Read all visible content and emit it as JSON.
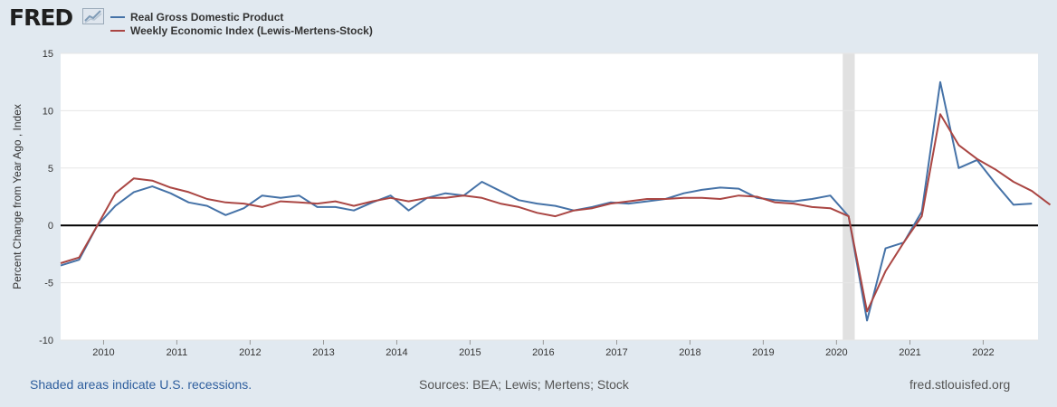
{
  "header": {
    "logo_text": "FRED",
    "logo_icon": "chart-trend-icon"
  },
  "footer": {
    "note": "Shaded areas indicate U.S. recessions.",
    "sources": "Sources: BEA; Lewis; Mertens; Stock",
    "site": "fred.stlouisfed.org"
  },
  "colors": {
    "background": "#e1e9f0",
    "plot_background": "#ffffff",
    "recession_shading": "#e1e1e1",
    "gdp_line": "#4572a7",
    "wei_line": "#aa4643",
    "zero_line": "#000000",
    "grid": "#e6e6e6"
  },
  "chart_data": {
    "type": "line",
    "title": "",
    "ylabel": "Percent Change from Year Ago , Index",
    "xlabel": "",
    "ylim": [
      -10,
      15
    ],
    "xlim": [
      "2009-06-01",
      "2022-10-01"
    ],
    "y_ticks": [
      -10,
      -5,
      0,
      5,
      10,
      15
    ],
    "x_ticks": [
      "2010",
      "2011",
      "2012",
      "2013",
      "2014",
      "2015",
      "2016",
      "2017",
      "2018",
      "2019",
      "2020",
      "2021",
      "2022"
    ],
    "grid": true,
    "legend": "top-left",
    "recessions": [
      [
        "2020-02-01",
        "2020-04-01"
      ]
    ],
    "series": [
      {
        "name": "Real Gross Domestic Product",
        "color": "#4572a7",
        "x": [
          "2009-06-01",
          "2009-09-01",
          "2009-12-01",
          "2010-03-01",
          "2010-06-01",
          "2010-09-01",
          "2010-12-01",
          "2011-03-01",
          "2011-06-01",
          "2011-09-01",
          "2011-12-01",
          "2012-03-01",
          "2012-06-01",
          "2012-09-01",
          "2012-12-01",
          "2013-03-01",
          "2013-06-01",
          "2013-09-01",
          "2013-12-01",
          "2014-03-01",
          "2014-06-01",
          "2014-09-01",
          "2014-12-01",
          "2015-03-01",
          "2015-06-01",
          "2015-09-01",
          "2015-12-01",
          "2016-03-01",
          "2016-06-01",
          "2016-09-01",
          "2016-12-01",
          "2017-03-01",
          "2017-06-01",
          "2017-09-01",
          "2017-12-01",
          "2018-03-01",
          "2018-06-01",
          "2018-09-01",
          "2018-12-01",
          "2019-03-01",
          "2019-06-01",
          "2019-09-01",
          "2019-12-01",
          "2020-03-01",
          "2020-06-01",
          "2020-09-01",
          "2020-12-01",
          "2021-03-01",
          "2021-06-01",
          "2021-09-01",
          "2021-12-01",
          "2022-03-01",
          "2022-06-01",
          "2022-09-01"
        ],
        "y": [
          -3.5,
          -3.0,
          0.0,
          1.7,
          2.9,
          3.4,
          2.8,
          2.0,
          1.7,
          0.9,
          1.5,
          2.6,
          2.4,
          2.6,
          1.6,
          1.6,
          1.3,
          2.0,
          2.6,
          1.3,
          2.4,
          2.8,
          2.6,
          3.8,
          3.0,
          2.2,
          1.9,
          1.7,
          1.3,
          1.6,
          2.0,
          1.9,
          2.1,
          2.3,
          2.8,
          3.1,
          3.3,
          3.2,
          2.4,
          2.2,
          2.1,
          2.3,
          2.6,
          0.8,
          -8.3,
          -2.0,
          -1.5,
          1.2,
          12.5,
          5.0,
          5.7,
          3.7,
          1.8,
          1.9
        ]
      },
      {
        "name": "Weekly Economic Index (Lewis-Mertens-Stock)",
        "color": "#aa4643",
        "x": [
          "2009-06-01",
          "2009-09-01",
          "2009-12-01",
          "2010-03-01",
          "2010-06-01",
          "2010-09-01",
          "2010-12-01",
          "2011-03-01",
          "2011-06-01",
          "2011-09-01",
          "2011-12-01",
          "2012-03-01",
          "2012-06-01",
          "2012-09-01",
          "2012-12-01",
          "2013-03-01",
          "2013-06-01",
          "2013-09-01",
          "2013-12-01",
          "2014-03-01",
          "2014-06-01",
          "2014-09-01",
          "2014-12-01",
          "2015-03-01",
          "2015-06-01",
          "2015-09-01",
          "2015-12-01",
          "2016-03-01",
          "2016-06-01",
          "2016-09-01",
          "2016-12-01",
          "2017-03-01",
          "2017-06-01",
          "2017-09-01",
          "2017-12-01",
          "2018-03-01",
          "2018-06-01",
          "2018-09-01",
          "2018-12-01",
          "2019-03-01",
          "2019-06-01",
          "2019-09-01",
          "2019-12-01",
          "2020-03-01",
          "2020-06-01",
          "2020-09-01",
          "2020-12-01",
          "2021-03-01",
          "2021-06-01",
          "2021-09-01",
          "2021-12-01",
          "2022-03-01",
          "2022-06-01",
          "2022-09-01",
          "2022-12-01"
        ],
        "y": [
          -3.3,
          -2.8,
          0.0,
          2.8,
          4.1,
          3.9,
          3.3,
          2.9,
          2.3,
          2.0,
          1.9,
          1.6,
          2.1,
          2.0,
          1.9,
          2.1,
          1.7,
          2.1,
          2.4,
          2.1,
          2.4,
          2.4,
          2.6,
          2.4,
          1.9,
          1.6,
          1.1,
          0.8,
          1.3,
          1.5,
          1.9,
          2.1,
          2.3,
          2.3,
          2.4,
          2.4,
          2.3,
          2.6,
          2.5,
          2.0,
          1.9,
          1.6,
          1.5,
          0.8,
          -7.5,
          -4.0,
          -1.5,
          0.8,
          9.7,
          7.0,
          5.8,
          4.9,
          3.8,
          3.0,
          1.8
        ]
      }
    ]
  }
}
